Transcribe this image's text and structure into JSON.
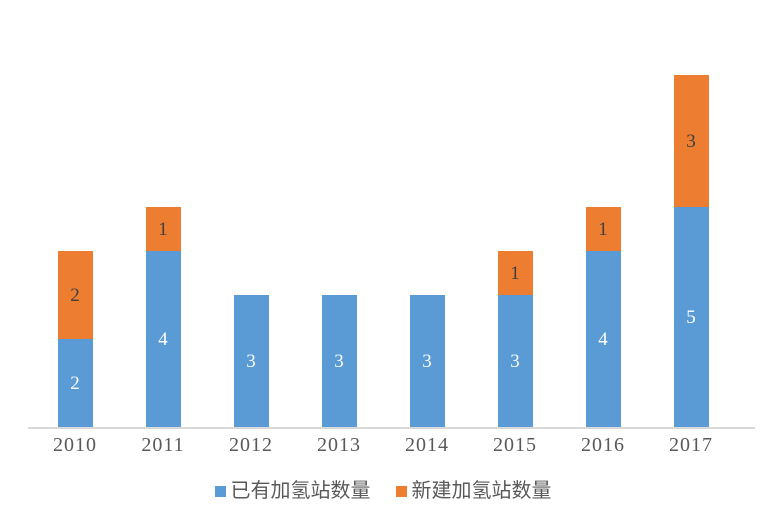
{
  "chart_data": {
    "type": "bar",
    "stacked": true,
    "categories": [
      "2010",
      "2011",
      "2012",
      "2013",
      "2014",
      "2015",
      "2016",
      "2017"
    ],
    "series": [
      {
        "name": "已有加氢站数量",
        "color": "#5B9BD5",
        "label_color": "#FFFFFF",
        "values": [
          2,
          4,
          3,
          3,
          3,
          3,
          4,
          5
        ]
      },
      {
        "name": "新建加氢站数量",
        "color": "#ED7D31",
        "label_color": "#3F3F3F",
        "values": [
          2,
          1,
          0,
          0,
          0,
          1,
          1,
          3
        ]
      }
    ],
    "ylim": [
      0,
      8
    ],
    "grid": false,
    "y_axis_visible": false,
    "data_labels_visible": true,
    "legend_position": "bottom",
    "axis_line_color": "#D9D9D9",
    "tick_label_color": "#595959",
    "legend_text_color": "#595959"
  }
}
